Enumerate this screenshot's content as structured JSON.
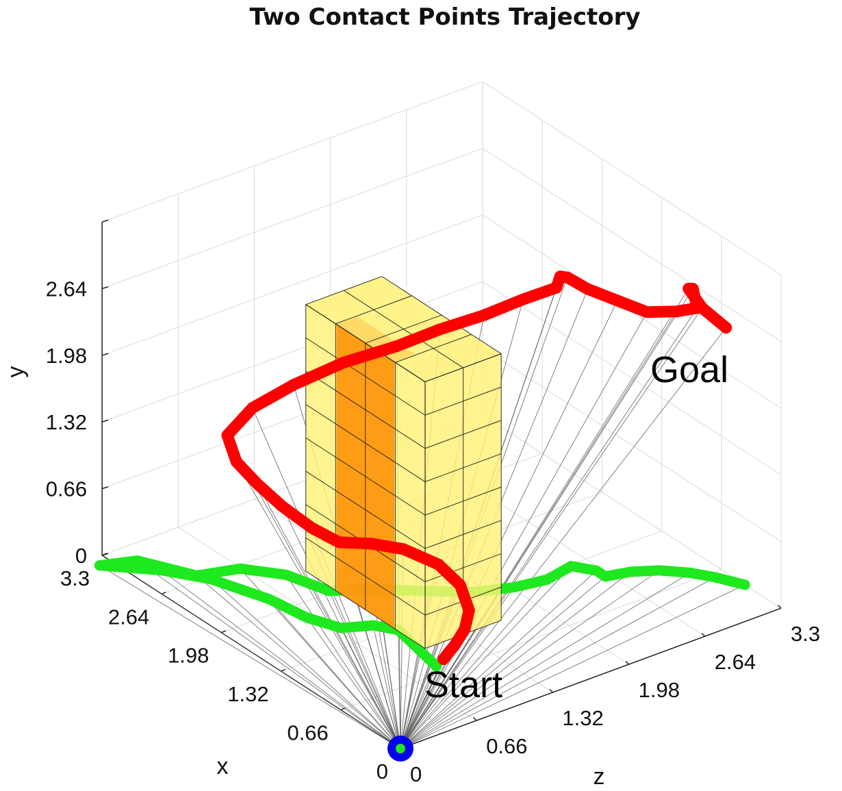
{
  "chart_data": {
    "type": "scatter",
    "title": "Two Contact Points Trajectory",
    "xlabel": "x",
    "ylabel": "y",
    "zlabel": "z",
    "xlim": [
      0,
      3.3
    ],
    "ylim": [
      0,
      3.3
    ],
    "zlim": [
      0,
      3.3
    ],
    "x_ticks": [
      "0",
      "0.66",
      "1.32",
      "1.98",
      "2.64",
      "3.3"
    ],
    "y_ticks": [
      "0",
      "0.66",
      "1.32",
      "1.98",
      "2.64"
    ],
    "z_ticks": [
      "0",
      "0.66",
      "1.32",
      "1.98",
      "2.64",
      "3.3"
    ],
    "grid": true,
    "annotations": {
      "start": "Start",
      "goal": "Goal"
    },
    "colors": {
      "contact_1": "#ff0000",
      "contact_2": "#1ee81e",
      "origin_marker": "#0000ee",
      "obstacle": "#fff176",
      "obstacle_core": "#ff8c00",
      "links": "#555555"
    },
    "obstacle": {
      "x": [
        0.99,
        2.31
      ],
      "y": [
        0,
        2.64
      ],
      "z": [
        0.99,
        1.65
      ]
    },
    "series": [
      {
        "points": [
          [
            0.8,
            0.0,
            1.0
          ],
          [
            0.8,
            0.1,
            1.1
          ],
          [
            0.82,
            0.2,
            1.2
          ],
          [
            0.9,
            0.3,
            1.3
          ],
          [
            1.1,
            0.4,
            1.38
          ],
          [
            1.3,
            0.5,
            1.35
          ],
          [
            1.5,
            0.6,
            1.2
          ],
          [
            1.6,
            0.68,
            1.0
          ],
          [
            1.7,
            0.72,
            0.8
          ],
          [
            1.9,
            0.78,
            0.72
          ],
          [
            2.1,
            0.92,
            0.62
          ],
          [
            2.25,
            1.1,
            0.52
          ],
          [
            2.35,
            1.3,
            0.42
          ],
          [
            2.4,
            1.55,
            0.38
          ],
          [
            2.3,
            1.82,
            0.52
          ],
          [
            2.1,
            2.08,
            0.72
          ],
          [
            1.9,
            2.3,
            1.0
          ],
          [
            1.7,
            2.45,
            1.3
          ],
          [
            1.6,
            2.55,
            1.6
          ],
          [
            1.5,
            2.62,
            1.9
          ],
          [
            1.45,
            2.68,
            2.2
          ],
          [
            1.4,
            2.72,
            2.45
          ],
          [
            1.55,
            2.68,
            2.6
          ],
          [
            1.6,
            2.6,
            2.7
          ],
          [
            1.5,
            2.5,
            2.8
          ],
          [
            1.3,
            2.46,
            2.9
          ],
          [
            1.1,
            2.42,
            3.0
          ],
          [
            0.9,
            2.5,
            3.1
          ],
          [
            0.8,
            2.55,
            3.2
          ],
          [
            0.95,
            2.62,
            3.28
          ],
          [
            1.1,
            2.5,
            3.36
          ],
          [
            1.0,
            2.35,
            3.4
          ],
          [
            0.8,
            2.25,
            3.45
          ]
        ]
      },
      {
        "points": [
          [
            0.75,
            0.0,
            0.9
          ],
          [
            1.3,
            0.0,
            1.0
          ],
          [
            1.45,
            0.0,
            0.9
          ],
          [
            1.55,
            0.0,
            0.7
          ],
          [
            1.8,
            0.0,
            0.6
          ],
          [
            2.15,
            0.0,
            0.55
          ],
          [
            2.6,
            0.0,
            0.4
          ],
          [
            2.9,
            0.0,
            0.2
          ],
          [
            3.1,
            0.0,
            0.0
          ],
          [
            3.2,
            0.0,
            -0.1
          ],
          [
            3.1,
            0.0,
            0.15
          ],
          [
            2.7,
            0.0,
            0.35
          ],
          [
            2.6,
            0.0,
            0.65
          ],
          [
            2.35,
            0.0,
            0.85
          ],
          [
            2.0,
            0.0,
            0.95
          ],
          [
            1.85,
            0.0,
            1.2
          ],
          [
            1.6,
            0.0,
            1.5
          ],
          [
            1.4,
            0.0,
            1.75
          ],
          [
            1.3,
            0.0,
            2.0
          ],
          [
            1.25,
            0.0,
            2.25
          ],
          [
            1.3,
            0.0,
            2.5
          ],
          [
            1.15,
            0.0,
            2.6
          ],
          [
            1.05,
            0.0,
            2.6
          ],
          [
            1.0,
            0.0,
            2.78
          ],
          [
            0.9,
            0.0,
            2.95
          ],
          [
            0.75,
            0.0,
            3.1
          ],
          [
            0.6,
            0.0,
            3.2
          ],
          [
            0.4,
            0.0,
            3.3
          ]
        ]
      }
    ],
    "origin_marker_point": [
      0,
      0,
      0
    ]
  }
}
